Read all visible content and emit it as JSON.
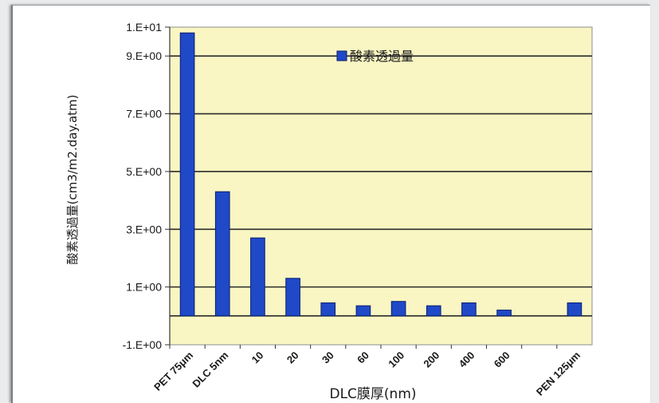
{
  "chart_data": {
    "type": "bar",
    "title": "",
    "xlabel": "DLC膜厚(nm)",
    "ylabel": "酸素透過量(cm3/m2.day.atm)",
    "ylim": [
      -1,
      10
    ],
    "yticks": [
      -1,
      1,
      3,
      5,
      7,
      9,
      10
    ],
    "ytick_labels": [
      "-1.E+00",
      "1.E+00",
      "3.E+00",
      "5.E+00",
      "7.E+00",
      "9.E+00",
      "1.E+01"
    ],
    "grid": true,
    "legend_position": "top-center",
    "categories": [
      "PET 75μm",
      "DLC 5nm",
      "10",
      "20",
      "30",
      "60",
      "100",
      "200",
      "400",
      "600",
      "",
      "PEN 125μm"
    ],
    "series": [
      {
        "name": "酸素透過量",
        "color": "#1f49c7",
        "values": [
          9.8,
          4.3,
          2.7,
          1.3,
          0.45,
          0.35,
          0.5,
          0.35,
          0.45,
          0.2,
          null,
          0.45
        ]
      }
    ],
    "colors": {
      "plot_background": "#f9f6c3",
      "gridline": "#2b2b2b",
      "bar_fill": "#1f49c7",
      "bar_edge": "#0a1e6e"
    }
  }
}
